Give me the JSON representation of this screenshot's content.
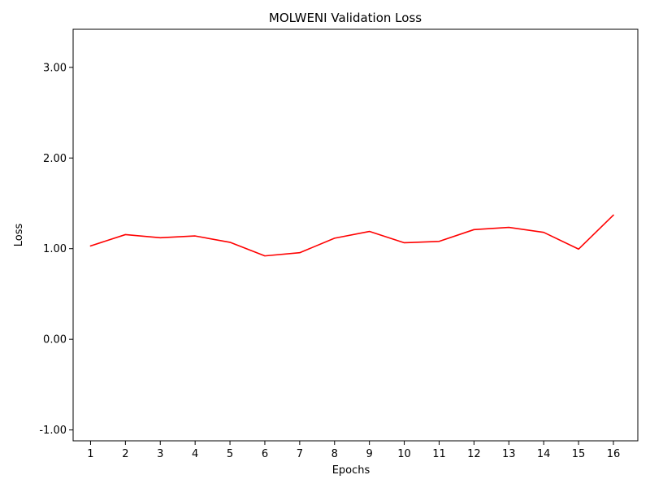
{
  "chart_data": {
    "type": "line",
    "title": "MOLWENI Validation Loss",
    "xlabel": "Epochs",
    "ylabel": "Loss",
    "x": [
      1,
      2,
      3,
      4,
      5,
      6,
      7,
      8,
      9,
      10,
      11,
      12,
      13,
      14,
      15,
      16
    ],
    "series": [
      {
        "values": [
          1.03,
          1.155,
          1.12,
          1.14,
          1.07,
          0.92,
          0.955,
          1.115,
          1.19,
          1.065,
          1.08,
          1.21,
          1.235,
          1.18,
          0.995,
          1.37
        ],
        "color": "#ff0000"
      }
    ],
    "xticks": [
      "1",
      "2",
      "3",
      "4",
      "5",
      "6",
      "7",
      "8",
      "9",
      "10",
      "11",
      "12",
      "13",
      "14",
      "15",
      "16"
    ],
    "yticks": [
      {
        "value": -1,
        "label": "-1.00"
      },
      {
        "value": 0,
        "label": "0.00"
      },
      {
        "value": 1,
        "label": "1.00"
      },
      {
        "value": 2,
        "label": "2.00"
      },
      {
        "value": 3,
        "label": "3.00"
      }
    ],
    "xlim": [
      0.5,
      16.7
    ],
    "ylim": [
      -1.12,
      3.42
    ],
    "grid": false,
    "legend": "none"
  }
}
